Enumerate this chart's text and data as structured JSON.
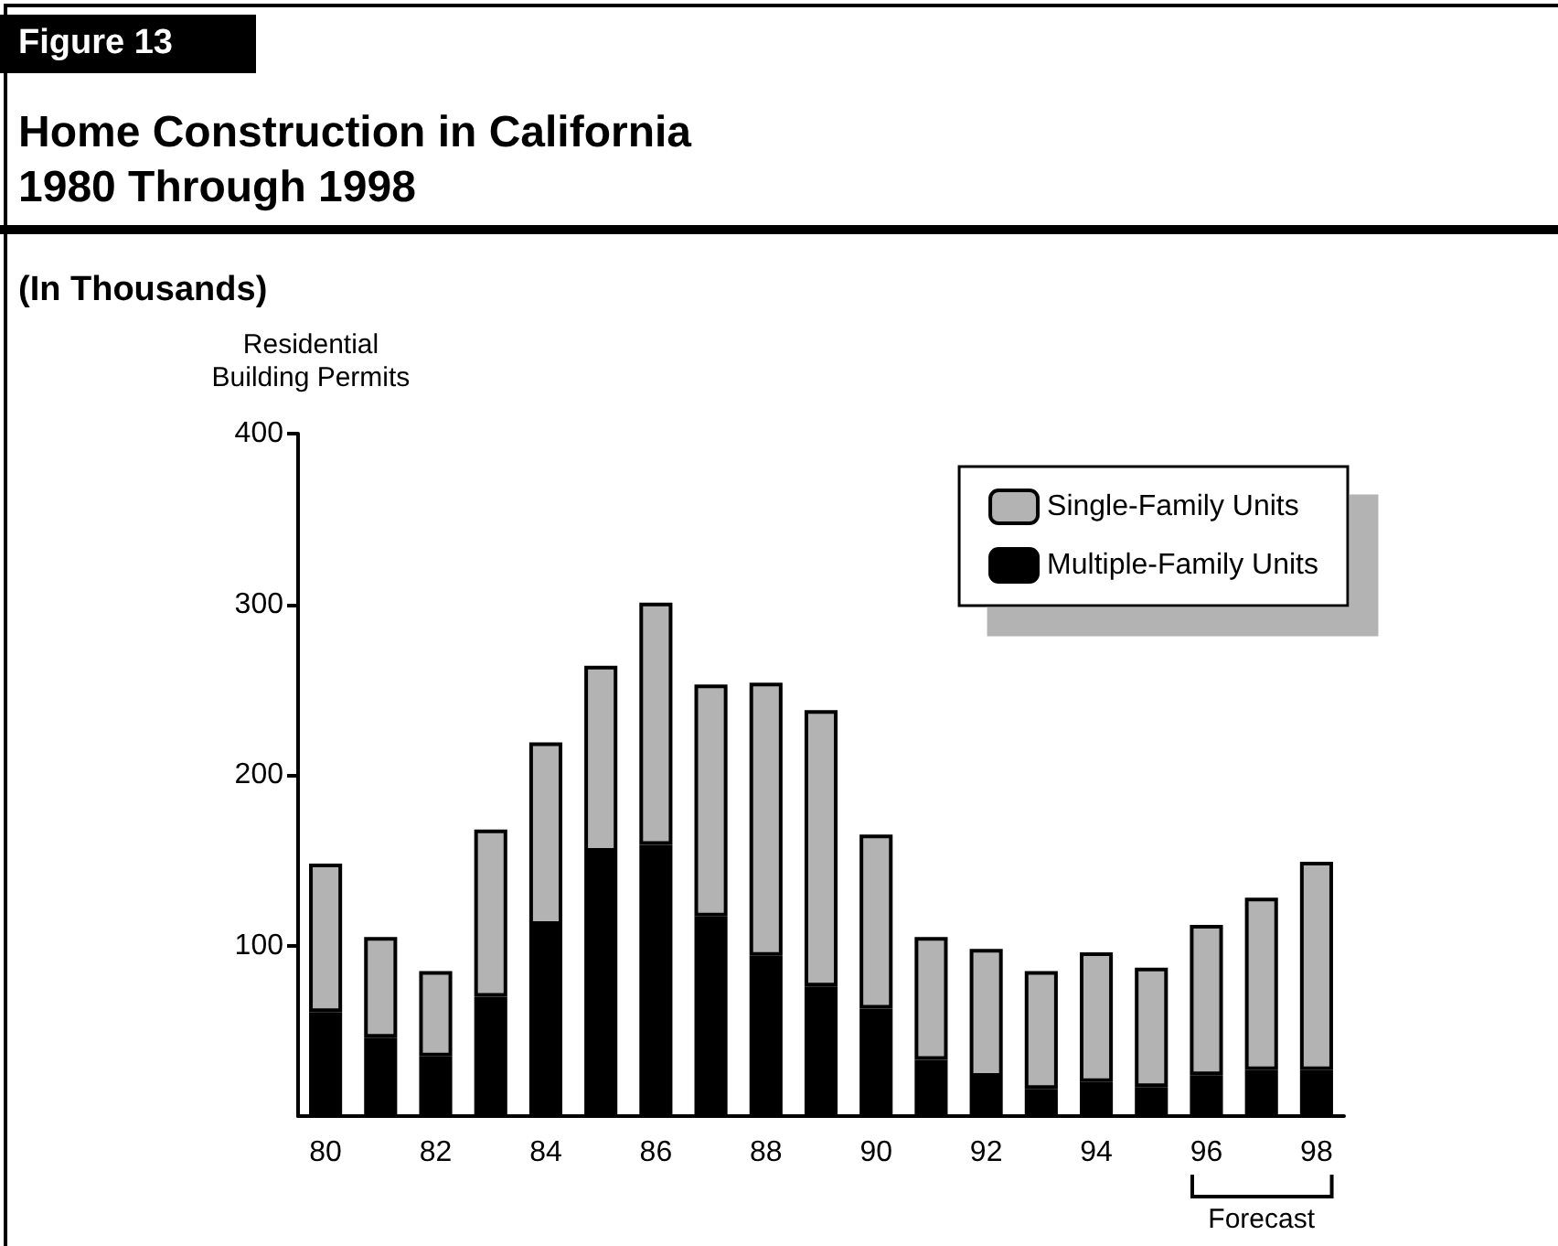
{
  "chart_data": {
    "type": "bar",
    "title": "Home Construction in California\n1980 Through 1998",
    "ylabel": "Residential\nBuilding Permits",
    "annotations": [
      "Figure 13",
      "(In Thousands)",
      "Forecast"
    ],
    "categories": [
      "80",
      null,
      "82",
      null,
      "84",
      null,
      "86",
      null,
      "88",
      null,
      "90",
      null,
      "92",
      null,
      "94",
      null,
      "96",
      null,
      "98"
    ],
    "stacked": true,
    "series": [
      {
        "name": "Multiple-Family Units",
        "color": "#000000",
        "values": [
          61,
          46,
          35,
          70,
          112,
          155,
          159,
          117,
          94,
          76,
          63,
          33,
          23,
          16,
          20,
          17,
          24,
          27,
          27
        ]
      },
      {
        "name": "Single-Family Units",
        "color": "#b3b3b3",
        "values": [
          87,
          59,
          50,
          98,
          107,
          109,
          142,
          136,
          160,
          162,
          102,
          72,
          75,
          69,
          76,
          70,
          88,
          101,
          122
        ]
      }
    ],
    "ylim": [
      0,
      400
    ],
    "yticks": [
      100,
      200,
      300,
      400
    ],
    "grid": false,
    "legend": "top right"
  }
}
